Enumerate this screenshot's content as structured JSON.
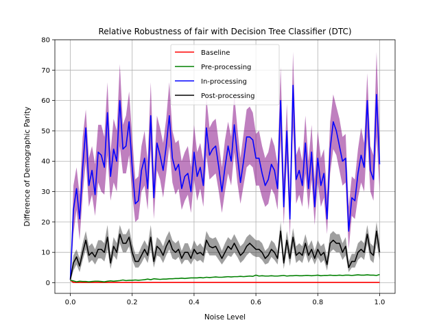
{
  "chart_data": {
    "type": "line",
    "title": "Relative Robustness of fair with Decision Tree Classifier (DTC)",
    "xlabel": "Noise Level",
    "ylabel": "Difference of Demographic Parity",
    "xlim": [
      -0.05,
      1.05
    ],
    "ylim": [
      -3.5,
      80
    ],
    "xticks": [
      0.0,
      0.2,
      0.4,
      0.6,
      0.8,
      1.0
    ],
    "xtick_labels": [
      "0.0",
      "0.2",
      "0.4",
      "0.6",
      "0.8",
      "1.0"
    ],
    "yticks": [
      0,
      10,
      20,
      30,
      40,
      50,
      60,
      70,
      80
    ],
    "ytick_labels": [
      "0",
      "10",
      "20",
      "30",
      "40",
      "50",
      "60",
      "70",
      "80"
    ],
    "grid": true,
    "legend_position": "top-center",
    "x": [
      0.0,
      0.01,
      0.02,
      0.03,
      0.04,
      0.05,
      0.06,
      0.07,
      0.08,
      0.09,
      0.1,
      0.11,
      0.12,
      0.13,
      0.14,
      0.15,
      0.16,
      0.17,
      0.18,
      0.19,
      0.2,
      0.21,
      0.22,
      0.23,
      0.24,
      0.25,
      0.26,
      0.27,
      0.28,
      0.29,
      0.3,
      0.31,
      0.32,
      0.33,
      0.34,
      0.35,
      0.36,
      0.37,
      0.38,
      0.39,
      0.4,
      0.41,
      0.42,
      0.43,
      0.44,
      0.45,
      0.46,
      0.47,
      0.48,
      0.49,
      0.5,
      0.51,
      0.52,
      0.53,
      0.54,
      0.55,
      0.56,
      0.57,
      0.58,
      0.59,
      0.6,
      0.61,
      0.62,
      0.63,
      0.64,
      0.65,
      0.66,
      0.67,
      0.68,
      0.69,
      0.7,
      0.71,
      0.72,
      0.73,
      0.74,
      0.75,
      0.76,
      0.77,
      0.78,
      0.79,
      0.8,
      0.81,
      0.82,
      0.83,
      0.84,
      0.85,
      0.86,
      0.87,
      0.88,
      0.89,
      0.9,
      0.91,
      0.92,
      0.93,
      0.94,
      0.95,
      0.96,
      0.97,
      0.98,
      0.99,
      1.0
    ],
    "series": [
      {
        "name": "Baseline",
        "color": "#ff0000",
        "values": [
          0.8,
          0.1,
          0.1,
          0.1,
          0.1,
          0.1,
          0.1,
          0.1,
          0.1,
          0.1,
          0.1,
          0.1,
          0.1,
          0.1,
          0.1,
          0.1,
          0.1,
          0.1,
          0.1,
          0.1,
          0.1,
          0.1,
          0.1,
          0.1,
          0.1,
          0.1,
          0.1,
          0.1,
          0.1,
          0.1,
          0.1,
          0.1,
          0.1,
          0.1,
          0.1,
          0.1,
          0.1,
          0.1,
          0.1,
          0.1,
          0.1,
          0.1,
          0.1,
          0.1,
          0.1,
          0.1,
          0.1,
          0.1,
          0.1,
          0.1,
          0.1,
          0.1,
          0.1,
          0.1,
          0.1,
          0.1,
          0.1,
          0.1,
          0.1,
          0.1,
          0.1,
          0.1,
          0.1,
          0.1,
          0.1,
          0.1,
          0.1,
          0.1,
          0.1,
          0.1,
          0.1,
          0.1,
          0.1,
          0.1,
          0.1,
          0.1,
          0.1,
          0.1,
          0.1,
          0.1,
          0.1,
          0.1,
          0.1,
          0.1,
          0.1,
          0.1,
          0.1,
          0.1,
          0.1,
          0.1,
          0.1,
          0.1,
          0.1,
          0.1,
          0.1,
          0.1,
          0.1,
          0.1,
          0.1,
          0.1,
          0.1
        ]
      },
      {
        "name": "Pre-processing",
        "color": "#008000",
        "values": [
          0.8,
          0.6,
          0.3,
          0.5,
          0.4,
          0.4,
          0.3,
          0.4,
          0.5,
          0.5,
          0.4,
          0.3,
          0.5,
          0.6,
          0.5,
          0.6,
          0.7,
          0.9,
          0.7,
          0.8,
          0.8,
          0.9,
          0.8,
          0.9,
          1.0,
          1.2,
          1.0,
          1.3,
          1.2,
          1.1,
          1.2,
          1.2,
          1.3,
          1.3,
          1.4,
          1.4,
          1.5,
          1.4,
          1.5,
          1.6,
          1.6,
          1.6,
          1.7,
          1.6,
          1.8,
          1.7,
          1.8,
          1.9,
          1.8,
          1.8,
          1.9,
          2.0,
          1.9,
          2.0,
          2.0,
          2.1,
          2.0,
          2.1,
          2.2,
          2.1,
          2.5,
          2.2,
          2.3,
          2.2,
          2.2,
          2.3,
          2.2,
          2.2,
          2.3,
          2.4,
          2.2,
          2.3,
          2.3,
          2.4,
          2.3,
          2.3,
          2.4,
          2.4,
          2.3,
          2.4,
          2.5,
          2.3,
          2.4,
          2.4,
          2.5,
          2.4,
          2.4,
          2.5,
          2.4,
          2.5,
          2.5,
          2.4,
          2.5,
          2.6,
          2.5,
          2.5,
          2.6,
          2.5,
          2.5,
          2.4,
          2.7
        ]
      },
      {
        "name": "In-processing",
        "color": "#0000ff",
        "band_color": "#800080",
        "values": [
          1.0,
          24,
          31,
          21,
          38,
          51,
          32,
          37,
          29,
          43,
          42,
          38,
          56,
          35,
          44,
          40,
          60,
          44,
          45,
          53,
          38,
          26,
          27,
          37,
          41,
          31,
          55,
          28,
          46,
          42,
          37,
          45,
          55,
          41,
          37,
          39,
          31,
          35,
          36,
          30,
          43,
          35,
          38,
          32,
          51,
          42,
          44,
          45,
          38,
          30,
          38,
          45,
          40,
          52,
          42,
          33,
          40,
          48,
          48,
          47,
          41,
          41,
          36,
          32,
          34,
          39,
          37,
          31,
          60,
          25,
          50,
          21,
          65,
          34,
          37,
          32,
          46,
          31,
          43,
          25,
          41,
          32,
          36,
          21,
          44,
          53,
          50,
          45,
          40,
          41,
          17,
          28,
          27,
          36,
          42,
          38,
          60,
          37,
          34,
          62,
          39
        ],
        "lower": [
          0.6,
          16,
          24,
          14,
          29,
          40,
          25,
          29,
          22,
          33,
          30,
          29,
          42,
          27,
          33,
          30,
          45,
          36,
          36,
          42,
          29,
          20,
          21,
          30,
          32,
          24,
          44,
          21,
          37,
          34,
          28,
          36,
          45,
          33,
          29,
          31,
          24,
          27,
          29,
          23,
          34,
          27,
          31,
          25,
          42,
          34,
          35,
          36,
          30,
          23,
          30,
          36,
          32,
          43,
          33,
          26,
          32,
          38,
          39,
          38,
          32,
          32,
          28,
          25,
          26,
          31,
          29,
          24,
          47,
          19,
          40,
          15,
          51,
          26,
          29,
          25,
          36,
          24,
          34,
          19,
          33,
          25,
          28,
          16,
          36,
          44,
          42,
          37,
          32,
          33,
          11,
          22,
          21,
          28,
          33,
          30,
          48,
          30,
          27,
          48,
          30
        ],
        "upper": [
          1.4,
          32,
          38,
          29,
          48,
          57,
          41,
          45,
          39,
          52,
          52,
          48,
          66,
          43,
          54,
          50,
          72,
          52,
          55,
          63,
          48,
          34,
          35,
          45,
          50,
          40,
          66,
          36,
          55,
          51,
          46,
          54,
          66,
          50,
          46,
          47,
          40,
          43,
          45,
          38,
          52,
          43,
          46,
          40,
          61,
          51,
          53,
          54,
          46,
          38,
          47,
          53,
          48,
          62,
          51,
          41,
          49,
          57,
          58,
          56,
          49,
          50,
          45,
          41,
          43,
          48,
          45,
          39,
          71,
          34,
          59,
          30,
          76,
          42,
          45,
          40,
          55,
          40,
          52,
          34,
          50,
          41,
          44,
          29,
          53,
          62,
          58,
          54,
          48,
          49,
          25,
          35,
          34,
          44,
          51,
          46,
          69,
          45,
          42,
          76,
          48
        ]
      },
      {
        "name": "Post-processing",
        "color": "#000000",
        "band_color": "#404040",
        "values": [
          1.0,
          6.5,
          8.5,
          5.5,
          10,
          14,
          9,
          10,
          8.5,
          11,
          11,
          10,
          15,
          6.5,
          12,
          10,
          16,
          13,
          13,
          15,
          10,
          7,
          7,
          9,
          11,
          9,
          15,
          7,
          12,
          11,
          9,
          12,
          14,
          11,
          10,
          11,
          8,
          10,
          10,
          8,
          11,
          9.5,
          10,
          9,
          14,
          12,
          11.5,
          12,
          10,
          8,
          10,
          12,
          11,
          13,
          11,
          9,
          10,
          12,
          13,
          12,
          11,
          11,
          10,
          8,
          9,
          11,
          10,
          8,
          17,
          6.5,
          14,
          8,
          15,
          9,
          10,
          9,
          13,
          9,
          11,
          8,
          11,
          9,
          10,
          6,
          13,
          14,
          13,
          13,
          10,
          12,
          5,
          7,
          7,
          10,
          11,
          10,
          16,
          10,
          9,
          17,
          10
        ],
        "lower": [
          0.5,
          4,
          6,
          3.5,
          7.5,
          11,
          6.5,
          7.5,
          6,
          8,
          8,
          7,
          11,
          4.5,
          9,
          7.5,
          13,
          10,
          10,
          12,
          7.5,
          5,
          5,
          6.5,
          8.5,
          6.5,
          11,
          5,
          9,
          8.5,
          6.5,
          9,
          11,
          8,
          7.5,
          8.5,
          6,
          7.5,
          7.5,
          6,
          8,
          7,
          7.5,
          6.5,
          11,
          9,
          9,
          9,
          7.5,
          6,
          7.5,
          9,
          8.5,
          10,
          8.5,
          6.5,
          7.5,
          9,
          10,
          9,
          8.5,
          8.5,
          7.5,
          6,
          6.5,
          8.5,
          7.5,
          6,
          14,
          4.5,
          11,
          5.5,
          12,
          6.5,
          7.5,
          6.5,
          10,
          6.5,
          8.5,
          6,
          8.5,
          6.5,
          7.5,
          4,
          10,
          11,
          10,
          10,
          7.5,
          9,
          3.5,
          5,
          5,
          7.5,
          8.5,
          7.5,
          13,
          7.5,
          6.5,
          13,
          7.5
        ],
        "upper": [
          1.5,
          9,
          11,
          8,
          13,
          17,
          12,
          13,
          11,
          14,
          14,
          13,
          19,
          9,
          15,
          13,
          19,
          16,
          16,
          18,
          13,
          9.5,
          9.5,
          12,
          14,
          12,
          19,
          9.5,
          15,
          14,
          12,
          15,
          17,
          14,
          13,
          14,
          10.5,
          13,
          13,
          10.5,
          14,
          12,
          13,
          11.5,
          17,
          15,
          14.5,
          15,
          13,
          10.5,
          13,
          15,
          14,
          16,
          14,
          12,
          13,
          15,
          16,
          15,
          14,
          14,
          13,
          10.5,
          11.5,
          14,
          13,
          10.5,
          20,
          9,
          17,
          11,
          18,
          12,
          13,
          12,
          16,
          12,
          14,
          10.5,
          14,
          12,
          13,
          8.5,
          16,
          17,
          16,
          16,
          13,
          15,
          7,
          9.5,
          9.5,
          13,
          14,
          13,
          19,
          13,
          12,
          20,
          13
        ]
      }
    ]
  }
}
